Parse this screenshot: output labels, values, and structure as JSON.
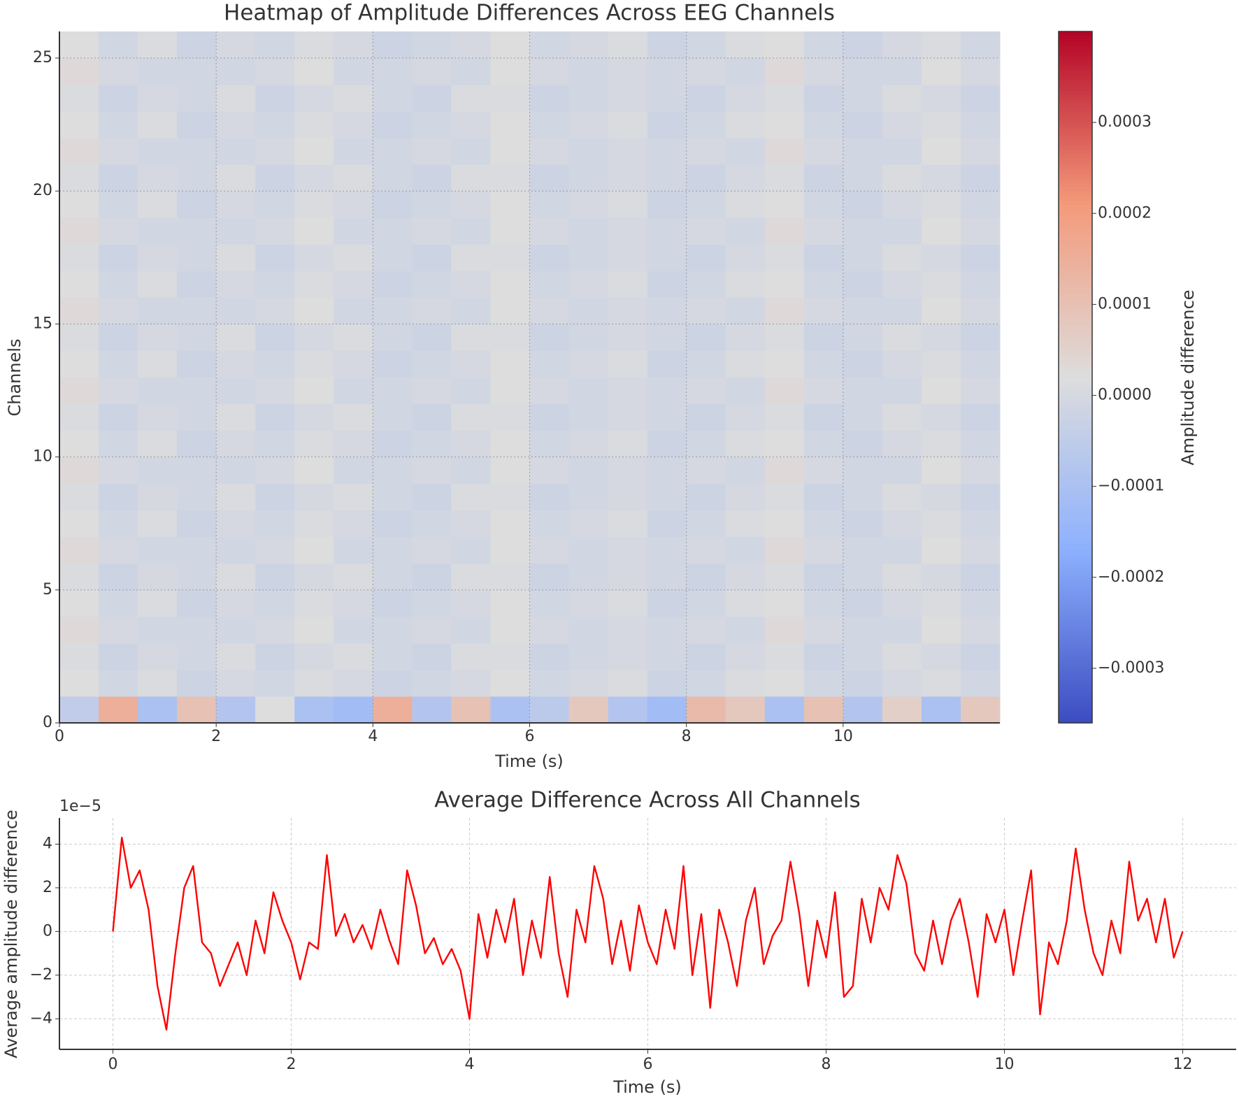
{
  "chart_data": [
    {
      "type": "heatmap",
      "title": "Heatmap of Amplitude Differences Across EEG Channels",
      "x_label": "Time (s)",
      "y_label": "Channels",
      "colorbar_label": "Amplitude difference",
      "colormap": "coolwarm",
      "xlim": [
        0,
        12
      ],
      "xticks": [
        0,
        2,
        4,
        6,
        8,
        10
      ],
      "ylim": [
        0,
        26
      ],
      "yticks": [
        0,
        5,
        10,
        15,
        20,
        25
      ],
      "grid": true,
      "clim": [
        -0.00036,
        0.0004
      ],
      "cticks": [
        {
          "value": -0.0003,
          "label": "−0.0003"
        },
        {
          "value": -0.0002,
          "label": "−0.0002"
        },
        {
          "value": -0.0001,
          "label": "−0.0001"
        },
        {
          "value": 0,
          "label": "0.0000"
        },
        0.0001,
        0.0002,
        0.0003
      ],
      "z": [
        [
          -5e-05,
          0.00015,
          -0.0001,
          0.0001,
          -8e-05,
          2e-05,
          -0.0001,
          -0.00012,
          0.00015,
          -8e-05,
          0.0001,
          -0.0001,
          -6e-05,
          8e-05,
          -8e-05,
          -0.00012,
          0.00012,
          8e-05,
          -0.0001,
          0.0001,
          -8e-05,
          6e-05,
          -0.0001,
          8e-05
        ],
        [
          2e-05,
          -1e-05,
          1e-05,
          -2e-05,
          0,
          -1e-05,
          1e-05,
          0,
          -2e-05,
          -1e-05,
          0,
          2e-05,
          -1e-05,
          0,
          1e-05,
          -2e-05,
          -1e-05,
          1e-05,
          2e-05,
          -1e-05,
          -2e-05,
          0,
          1e-05,
          -1e-05
        ],
        [
          1e-05,
          -2e-05,
          0,
          -1e-05,
          1e-05,
          -2e-05,
          0,
          1e-05,
          -1e-05,
          -2e-05,
          1e-05,
          1e-05,
          -2e-05,
          -1e-05,
          0,
          -1e-05,
          -2e-05,
          0,
          1e-05,
          -2e-05,
          -1e-05,
          1e-05,
          0,
          -2e-05
        ],
        [
          3e-05,
          0,
          -1e-05,
          -1e-05,
          -1e-05,
          0,
          2e-05,
          -1e-05,
          -1e-05,
          0,
          -1e-05,
          2e-05,
          0,
          -1e-05,
          0,
          -1e-05,
          0,
          -1e-05,
          3e-05,
          0,
          -1e-05,
          -1e-05,
          2e-05,
          0
        ],
        [
          2e-05,
          -1e-05,
          1e-05,
          -2e-05,
          0,
          -1e-05,
          1e-05,
          0,
          -2e-05,
          -1e-05,
          0,
          2e-05,
          -1e-05,
          0,
          1e-05,
          -2e-05,
          -1e-05,
          1e-05,
          2e-05,
          -1e-05,
          -2e-05,
          0,
          1e-05,
          -1e-05
        ],
        [
          1e-05,
          -2e-05,
          0,
          -1e-05,
          1e-05,
          -2e-05,
          0,
          1e-05,
          -1e-05,
          -2e-05,
          1e-05,
          1e-05,
          -2e-05,
          -1e-05,
          0,
          -1e-05,
          -2e-05,
          0,
          1e-05,
          -2e-05,
          -1e-05,
          1e-05,
          0,
          -2e-05
        ],
        [
          3e-05,
          0,
          -1e-05,
          -1e-05,
          -1e-05,
          0,
          2e-05,
          -1e-05,
          -1e-05,
          0,
          -1e-05,
          2e-05,
          0,
          -1e-05,
          0,
          -1e-05,
          0,
          -1e-05,
          3e-05,
          0,
          -1e-05,
          -1e-05,
          2e-05,
          0
        ],
        [
          2e-05,
          -1e-05,
          1e-05,
          -2e-05,
          0,
          -1e-05,
          1e-05,
          0,
          -2e-05,
          -1e-05,
          0,
          2e-05,
          -1e-05,
          0,
          1e-05,
          -2e-05,
          -1e-05,
          1e-05,
          2e-05,
          -1e-05,
          -2e-05,
          0,
          1e-05,
          -1e-05
        ],
        [
          1e-05,
          -2e-05,
          0,
          -1e-05,
          1e-05,
          -2e-05,
          0,
          1e-05,
          -1e-05,
          -2e-05,
          1e-05,
          1e-05,
          -2e-05,
          -1e-05,
          0,
          -1e-05,
          -2e-05,
          0,
          1e-05,
          -2e-05,
          -1e-05,
          1e-05,
          0,
          -2e-05
        ],
        [
          3e-05,
          0,
          -1e-05,
          -1e-05,
          -1e-05,
          0,
          2e-05,
          -1e-05,
          -1e-05,
          0,
          -1e-05,
          2e-05,
          0,
          -1e-05,
          0,
          -1e-05,
          0,
          -1e-05,
          3e-05,
          0,
          -1e-05,
          -1e-05,
          2e-05,
          0
        ],
        [
          2e-05,
          -1e-05,
          1e-05,
          -2e-05,
          0,
          -1e-05,
          1e-05,
          0,
          -2e-05,
          -1e-05,
          0,
          2e-05,
          -1e-05,
          0,
          1e-05,
          -2e-05,
          -1e-05,
          1e-05,
          2e-05,
          -1e-05,
          -2e-05,
          0,
          1e-05,
          -1e-05
        ],
        [
          1e-05,
          -2e-05,
          0,
          -1e-05,
          1e-05,
          -2e-05,
          0,
          1e-05,
          -1e-05,
          -2e-05,
          1e-05,
          1e-05,
          -2e-05,
          -1e-05,
          0,
          -1e-05,
          -2e-05,
          0,
          1e-05,
          -2e-05,
          -1e-05,
          1e-05,
          0,
          -2e-05
        ],
        [
          3e-05,
          0,
          -1e-05,
          -1e-05,
          -1e-05,
          0,
          2e-05,
          -1e-05,
          -1e-05,
          0,
          -1e-05,
          2e-05,
          0,
          -1e-05,
          0,
          -1e-05,
          0,
          -1e-05,
          3e-05,
          0,
          -1e-05,
          -1e-05,
          2e-05,
          0
        ],
        [
          2e-05,
          -1e-05,
          1e-05,
          -2e-05,
          0,
          -1e-05,
          1e-05,
          0,
          -2e-05,
          -1e-05,
          0,
          2e-05,
          -1e-05,
          0,
          1e-05,
          -2e-05,
          -1e-05,
          1e-05,
          2e-05,
          -1e-05,
          -2e-05,
          0,
          1e-05,
          -1e-05
        ],
        [
          1e-05,
          -2e-05,
          0,
          -1e-05,
          1e-05,
          -2e-05,
          0,
          1e-05,
          -1e-05,
          -2e-05,
          1e-05,
          1e-05,
          -2e-05,
          -1e-05,
          0,
          -1e-05,
          -2e-05,
          0,
          1e-05,
          -2e-05,
          -1e-05,
          1e-05,
          0,
          -2e-05
        ],
        [
          3e-05,
          0,
          -1e-05,
          -1e-05,
          -1e-05,
          0,
          2e-05,
          -1e-05,
          -1e-05,
          0,
          -1e-05,
          2e-05,
          0,
          -1e-05,
          0,
          -1e-05,
          0,
          -1e-05,
          3e-05,
          0,
          -1e-05,
          -1e-05,
          2e-05,
          0
        ],
        [
          2e-05,
          -1e-05,
          1e-05,
          -2e-05,
          0,
          -1e-05,
          1e-05,
          0,
          -2e-05,
          -1e-05,
          0,
          2e-05,
          -1e-05,
          0,
          1e-05,
          -2e-05,
          -1e-05,
          1e-05,
          2e-05,
          -1e-05,
          -2e-05,
          0,
          1e-05,
          -1e-05
        ],
        [
          1e-05,
          -2e-05,
          0,
          -1e-05,
          1e-05,
          -2e-05,
          0,
          1e-05,
          -1e-05,
          -2e-05,
          1e-05,
          1e-05,
          -2e-05,
          -1e-05,
          0,
          -1e-05,
          -2e-05,
          0,
          1e-05,
          -2e-05,
          -1e-05,
          1e-05,
          0,
          -2e-05
        ],
        [
          3e-05,
          0,
          -1e-05,
          -1e-05,
          -1e-05,
          0,
          2e-05,
          -1e-05,
          -1e-05,
          0,
          -1e-05,
          2e-05,
          0,
          -1e-05,
          0,
          -1e-05,
          0,
          -1e-05,
          3e-05,
          0,
          -1e-05,
          -1e-05,
          2e-05,
          0
        ],
        [
          2e-05,
          -1e-05,
          1e-05,
          -2e-05,
          0,
          -1e-05,
          1e-05,
          0,
          -2e-05,
          -1e-05,
          0,
          2e-05,
          -1e-05,
          0,
          1e-05,
          -2e-05,
          -1e-05,
          1e-05,
          2e-05,
          -1e-05,
          -2e-05,
          0,
          1e-05,
          -1e-05
        ],
        [
          1e-05,
          -2e-05,
          0,
          -1e-05,
          1e-05,
          -2e-05,
          0,
          1e-05,
          -1e-05,
          -2e-05,
          1e-05,
          1e-05,
          -2e-05,
          -1e-05,
          0,
          -1e-05,
          -2e-05,
          0,
          1e-05,
          -2e-05,
          -1e-05,
          1e-05,
          0,
          -2e-05
        ],
        [
          3e-05,
          0,
          -1e-05,
          -1e-05,
          -1e-05,
          0,
          2e-05,
          -1e-05,
          -1e-05,
          0,
          -1e-05,
          2e-05,
          0,
          -1e-05,
          0,
          -1e-05,
          0,
          -1e-05,
          3e-05,
          0,
          -1e-05,
          -1e-05,
          2e-05,
          0
        ],
        [
          2e-05,
          -1e-05,
          1e-05,
          -2e-05,
          0,
          -1e-05,
          1e-05,
          0,
          -2e-05,
          -1e-05,
          0,
          2e-05,
          -1e-05,
          0,
          1e-05,
          -2e-05,
          -1e-05,
          1e-05,
          2e-05,
          -1e-05,
          -2e-05,
          0,
          1e-05,
          -1e-05
        ],
        [
          1e-05,
          -2e-05,
          0,
          -1e-05,
          1e-05,
          -2e-05,
          0,
          1e-05,
          -1e-05,
          -2e-05,
          1e-05,
          1e-05,
          -2e-05,
          -1e-05,
          0,
          -1e-05,
          -2e-05,
          0,
          1e-05,
          -2e-05,
          -1e-05,
          1e-05,
          0,
          -2e-05
        ],
        [
          3e-05,
          0,
          -1e-05,
          -1e-05,
          -1e-05,
          0,
          2e-05,
          -1e-05,
          -1e-05,
          0,
          -1e-05,
          2e-05,
          0,
          -1e-05,
          0,
          -1e-05,
          0,
          -1e-05,
          3e-05,
          0,
          -1e-05,
          -1e-05,
          2e-05,
          0
        ],
        [
          2e-05,
          -1e-05,
          1e-05,
          -2e-05,
          0,
          -1e-05,
          1e-05,
          0,
          -2e-05,
          -1e-05,
          0,
          2e-05,
          -1e-05,
          0,
          1e-05,
          -2e-05,
          -1e-05,
          1e-05,
          2e-05,
          -1e-05,
          -2e-05,
          0,
          1e-05,
          -1e-05
        ]
      ]
    },
    {
      "type": "line",
      "title": "Average Difference Across All Channels",
      "x_label": "Time (s)",
      "y_label": "Average amplitude difference",
      "offset_text": "1e−5",
      "xlim": [
        -0.6,
        12.6
      ],
      "xticks": [
        0,
        2,
        4,
        6,
        8,
        10,
        12
      ],
      "ylim": [
        -5.4,
        5.2
      ],
      "yticks": [
        {
          "value": -4,
          "label": "−4"
        },
        {
          "value": -2,
          "label": "−2"
        },
        0,
        2,
        4
      ],
      "grid": true,
      "x": [
        0,
        0.1,
        0.2,
        0.3,
        0.4,
        0.5,
        0.6,
        0.7,
        0.8,
        0.9,
        1,
        1.1,
        1.2,
        1.3,
        1.4,
        1.5,
        1.6,
        1.7,
        1.8,
        1.9,
        2,
        2.1,
        2.2,
        2.3,
        2.4,
        2.5,
        2.6,
        2.7,
        2.8,
        2.9,
        3,
        3.1,
        3.2,
        3.3,
        3.4,
        3.5,
        3.6,
        3.7,
        3.8,
        3.9,
        4,
        4.1,
        4.2,
        4.3,
        4.4,
        4.5,
        4.6,
        4.7,
        4.8,
        4.9,
        5,
        5.1,
        5.2,
        5.3,
        5.4,
        5.5,
        5.6,
        5.7,
        5.8,
        5.9,
        6,
        6.1,
        6.2,
        6.3,
        6.4,
        6.5,
        6.6,
        6.7,
        6.8,
        6.9,
        7,
        7.1,
        7.2,
        7.3,
        7.4,
        7.5,
        7.6,
        7.7,
        7.8,
        7.9,
        8,
        8.1,
        8.2,
        8.3,
        8.4,
        8.5,
        8.6,
        8.7,
        8.8,
        8.9,
        9,
        9.1,
        9.2,
        9.3,
        9.4,
        9.5,
        9.6,
        9.7,
        9.8,
        9.9,
        10,
        10.1,
        10.2,
        10.3,
        10.4,
        10.5,
        10.6,
        10.7,
        10.8,
        10.9,
        11,
        11.1,
        11.2,
        11.3,
        11.4,
        11.5,
        11.6,
        11.7,
        11.8,
        11.9,
        12
      ],
      "series": [
        {
          "color": "#ff0000",
          "values": [
            0,
            4.3,
            2.0,
            2.8,
            1.0,
            -2.5,
            -4.5,
            -1.0,
            2.0,
            3.0,
            -0.5,
            -1.0,
            -2.5,
            -1.5,
            -0.5,
            -2.0,
            0.5,
            -1.0,
            1.8,
            0.5,
            -0.5,
            -2.2,
            -0.5,
            -0.8,
            3.5,
            -0.2,
            0.8,
            -0.5,
            0.3,
            -0.8,
            1.0,
            -0.4,
            -1.5,
            2.8,
            1.2,
            -1.0,
            -0.3,
            -1.5,
            -0.8,
            -1.8,
            -4.0,
            0.8,
            -1.2,
            1.0,
            -0.5,
            1.5,
            -2.0,
            0.5,
            -1.2,
            2.5,
            -1.0,
            -3.0,
            1.0,
            -0.5,
            3.0,
            1.5,
            -1.5,
            0.5,
            -1.8,
            1.2,
            -0.5,
            -1.5,
            1.0,
            -0.8,
            3.0,
            -2.0,
            0.8,
            -3.5,
            1.0,
            -0.5,
            -2.5,
            0.5,
            2.0,
            -1.5,
            -0.2,
            0.5,
            3.2,
            0.8,
            -2.5,
            0.5,
            -1.2,
            1.8,
            -3.0,
            -2.5,
            1.5,
            -0.5,
            2.0,
            1.0,
            3.5,
            2.2,
            -1.0,
            -1.8,
            0.5,
            -1.5,
            0.5,
            1.5,
            -0.5,
            -3.0,
            0.8,
            -0.5,
            1.0,
            -2.0,
            0.5,
            2.8,
            -3.8,
            -0.5,
            -1.5,
            0.5,
            3.8,
            1.0,
            -1.0,
            -2.0,
            0.5,
            -1.0,
            3.2,
            0.5,
            1.5,
            -0.5,
            1.5,
            -1.2,
            0
          ]
        }
      ]
    }
  ]
}
